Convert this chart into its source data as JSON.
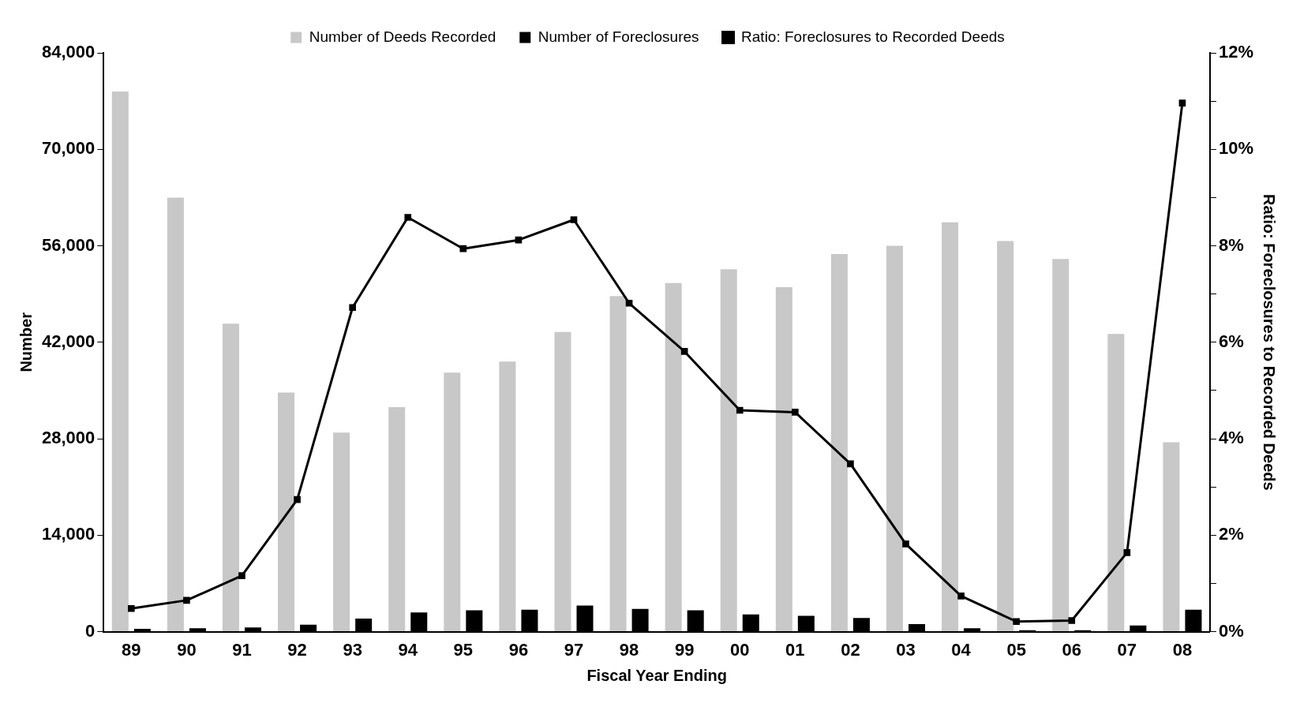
{
  "chart_data": {
    "type": "bar",
    "xlabel": "Fiscal Year Ending",
    "ylabel": "Number",
    "y2label": "Ratio: Foreclosures to Recorded Deeds",
    "legend": "top",
    "categories": [
      "89",
      "90",
      "91",
      "92",
      "93",
      "94",
      "95",
      "96",
      "97",
      "98",
      "99",
      "00",
      "01",
      "02",
      "03",
      "04",
      "05",
      "06",
      "07",
      "08"
    ],
    "series": [
      {
        "name": "Number of Deeds Recorded",
        "color": "#c8c8c8",
        "values": [
          78400,
          63000,
          44700,
          34700,
          28900,
          32600,
          37600,
          39200,
          43500,
          48700,
          50600,
          52600,
          50000,
          54800,
          56000,
          59400,
          56700,
          54100,
          43200,
          27500
        ]
      },
      {
        "name": "Number of Foreclosures",
        "color": "#000000",
        "values": [
          400,
          500,
          600,
          1000,
          1900,
          2800,
          3100,
          3200,
          3800,
          3300,
          3100,
          2500,
          2300,
          2000,
          1100,
          500,
          200,
          200,
          900,
          3200
        ]
      },
      {
        "name": "Ratio: Foreclosures to Recorded Deeds",
        "type": "line",
        "axis": "y2",
        "color": "#000000",
        "marker": "square",
        "values": [
          0.48,
          0.65,
          1.16,
          2.74,
          6.72,
          8.59,
          7.94,
          8.12,
          8.54,
          6.81,
          5.81,
          4.59,
          4.55,
          3.48,
          1.82,
          0.74,
          0.21,
          0.23,
          1.64,
          10.96
        ]
      }
    ],
    "ylim": [
      0,
      84000
    ],
    "yticks": [
      {
        "value": 0,
        "label": "0"
      },
      {
        "value": 14000,
        "label": "14,000"
      },
      {
        "value": 28000,
        "label": "28,000"
      },
      {
        "value": 42000,
        "label": "42,000"
      },
      {
        "value": 56000,
        "label": "56,000"
      },
      {
        "value": 70000,
        "label": "70,000"
      },
      {
        "value": 84000,
        "label": "84,000"
      }
    ],
    "y2lim": [
      0,
      12
    ],
    "y2ticks": [
      {
        "value": 0,
        "label": "0%"
      },
      {
        "value": 1,
        "label": null
      },
      {
        "value": 2,
        "label": "2%"
      },
      {
        "value": 3,
        "label": null
      },
      {
        "value": 4,
        "label": "4%"
      },
      {
        "value": 5,
        "label": null
      },
      {
        "value": 6,
        "label": "6%"
      },
      {
        "value": 7,
        "label": null
      },
      {
        "value": 8,
        "label": "8%"
      },
      {
        "value": 9,
        "label": null
      },
      {
        "value": 10,
        "label": "10%"
      },
      {
        "value": 11,
        "label": null
      },
      {
        "value": 12,
        "label": "12%"
      }
    ]
  }
}
